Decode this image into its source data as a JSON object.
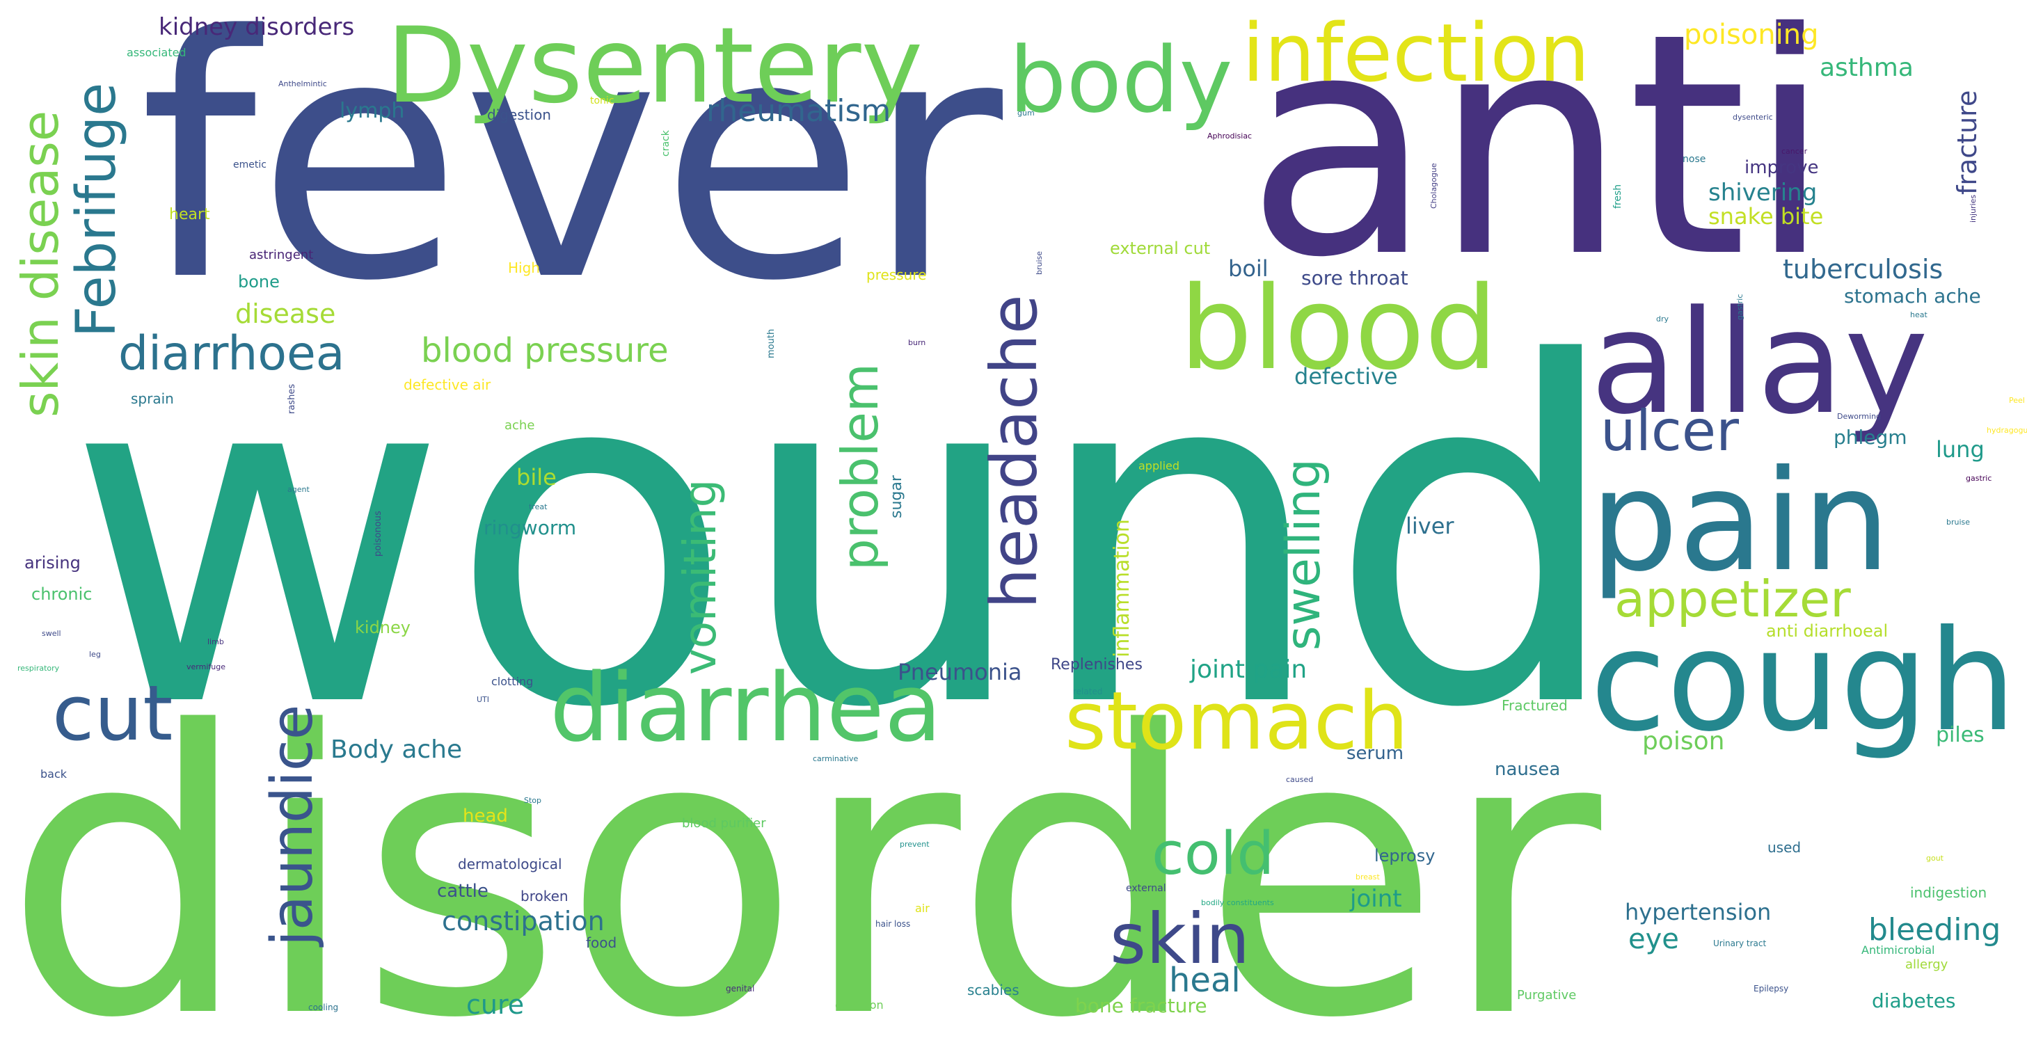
{
  "word_cloud": {
    "words": [
      {
        "id": "wound",
        "text": "wound",
        "color": "#22A384"
      },
      {
        "id": "disorder",
        "text": "disorder",
        "color": "#6ECE58"
      },
      {
        "id": "fever",
        "text": "fever",
        "color": "#3D4E8A"
      },
      {
        "id": "anti",
        "text": "anti",
        "color": "#46317E"
      },
      {
        "id": "dysentery",
        "text": "Dysentery",
        "color": "#6ECE58"
      },
      {
        "id": "infection",
        "text": "infection",
        "color": "#E3E418"
      },
      {
        "id": "body",
        "text": "body",
        "color": "#5EC962"
      },
      {
        "id": "blood",
        "text": "blood",
        "color": "#8FD744"
      },
      {
        "id": "allay",
        "text": "allay",
        "color": "#463480"
      },
      {
        "id": "pain",
        "text": "pain",
        "color": "#2A788E"
      },
      {
        "id": "cough",
        "text": "cough",
        "color": "#24878E"
      },
      {
        "id": "diarrhea",
        "text": "diarrhea",
        "color": "#52C569"
      },
      {
        "id": "stomach",
        "text": "stomach",
        "color": "#DFE318"
      },
      {
        "id": "cut",
        "text": "cut",
        "color": "#365C8D"
      },
      {
        "id": "skin",
        "text": "skin",
        "color": "#3E4989"
      },
      {
        "id": "cold",
        "text": "cold",
        "color": "#44BF70"
      },
      {
        "id": "ulcer",
        "text": "ulcer",
        "color": "#3B528B"
      },
      {
        "id": "appetizer",
        "text": "appetizer",
        "color": "#A5DB36"
      },
      {
        "id": "diarrhoea",
        "text": "diarrhoea",
        "color": "#2C728E"
      },
      {
        "id": "blood-pressure",
        "text": "blood pressure",
        "color": "#7AD151"
      },
      {
        "id": "rheumatism",
        "text": "rheumatism",
        "color": "#31668E"
      },
      {
        "id": "poisoning",
        "text": "poisoning",
        "color": "#FDE725"
      },
      {
        "id": "asthma",
        "text": "asthma",
        "color": "#35B779"
      },
      {
        "id": "kidney-disorders",
        "text": "kidney disorders",
        "color": "#482878"
      },
      {
        "id": "febrifuge",
        "text": "Febrifuge",
        "color": "#2A788E"
      },
      {
        "id": "skin-disease",
        "text": "skin disease",
        "color": "#7AD151"
      },
      {
        "id": "headache",
        "text": "headache",
        "color": "#414487"
      },
      {
        "id": "problem",
        "text": "problem",
        "color": "#4AC16D"
      },
      {
        "id": "vomiting",
        "text": "vomiting",
        "color": "#3BBB75"
      },
      {
        "id": "swelling",
        "text": "swelling",
        "color": "#2FB47C"
      },
      {
        "id": "jaundice",
        "text": "jaundice",
        "color": "#3A548C"
      },
      {
        "id": "inflammation",
        "text": "inflammation",
        "color": "#B8DE29"
      },
      {
        "id": "fracture",
        "text": "fracture",
        "color": "#3F4889"
      },
      {
        "id": "tuberculosis",
        "text": "tuberculosis",
        "color": "#31688E"
      },
      {
        "id": "shivering",
        "text": "shivering",
        "color": "#26828E"
      },
      {
        "id": "snake-bite",
        "text": "snake bite",
        "color": "#C2DF23"
      },
      {
        "id": "improve",
        "text": "improve",
        "color": "#453581"
      },
      {
        "id": "stomach-ache",
        "text": "stomach ache",
        "color": "#2C738E"
      },
      {
        "id": "lung",
        "text": "lung",
        "color": "#1F9A8A"
      },
      {
        "id": "phlegm",
        "text": "phlegm",
        "color": "#277F8E"
      },
      {
        "id": "defective",
        "text": "defective",
        "color": "#26828E"
      },
      {
        "id": "boil",
        "text": "boil",
        "color": "#33638D"
      },
      {
        "id": "sore-throat",
        "text": "sore throat",
        "color": "#3E4A89"
      },
      {
        "id": "external-cut",
        "text": "external cut",
        "color": "#A0DA39"
      },
      {
        "id": "liver",
        "text": "liver",
        "color": "#2D708E"
      },
      {
        "id": "joint-pain",
        "text": "joint pain",
        "color": "#20A386"
      },
      {
        "id": "pneumonia",
        "text": "Pneumonia",
        "color": "#3B528B"
      },
      {
        "id": "replenishes",
        "text": "Replenishes",
        "color": "#3F4788"
      },
      {
        "id": "body-ache",
        "text": "Body ache",
        "color": "#29798E"
      },
      {
        "id": "poison",
        "text": "poison",
        "color": "#6DCD59"
      },
      {
        "id": "piles",
        "text": "piles",
        "color": "#3ABA76"
      },
      {
        "id": "anti-diarrhoeal",
        "text": "anti diarrhoeal",
        "color": "#B5DE2B"
      },
      {
        "id": "serum",
        "text": "serum",
        "color": "#33628D"
      },
      {
        "id": "nausea",
        "text": "nausea",
        "color": "#2E6E8E"
      },
      {
        "id": "fractured",
        "text": "Fractured",
        "color": "#5CC863"
      },
      {
        "id": "leprosy",
        "text": "leprosy",
        "color": "#31668E"
      },
      {
        "id": "joint",
        "text": "joint",
        "color": "#1E9C89"
      },
      {
        "id": "hypertension",
        "text": "hypertension",
        "color": "#2D708E"
      },
      {
        "id": "eye",
        "text": "eye",
        "color": "#21918C"
      },
      {
        "id": "bleeding",
        "text": "bleeding",
        "color": "#238A8D"
      },
      {
        "id": "heal",
        "text": "heal",
        "color": "#2A788E"
      },
      {
        "id": "constipation",
        "text": "constipation",
        "color": "#2D718E"
      },
      {
        "id": "cure",
        "text": "cure",
        "color": "#1F988B"
      },
      {
        "id": "bone-fracture",
        "text": "bone fracture",
        "color": "#7FD34E"
      },
      {
        "id": "diabetes",
        "text": "diabetes",
        "color": "#1F9E89"
      },
      {
        "id": "lymph",
        "text": "lymph",
        "color": "#2A788E"
      },
      {
        "id": "digestion",
        "text": "digestion",
        "color": "#3B528B"
      },
      {
        "id": "disease",
        "text": "disease",
        "color": "#A5DB36"
      },
      {
        "id": "bone",
        "text": "bone",
        "color": "#1E9C89"
      },
      {
        "id": "astringent",
        "text": "astringent",
        "color": "#482475"
      },
      {
        "id": "heart",
        "text": "heart",
        "color": "#C2DF23"
      },
      {
        "id": "high",
        "text": "High",
        "color": "#FDE725"
      },
      {
        "id": "pressure",
        "text": "pressure",
        "color": "#DFE318"
      },
      {
        "id": "bile",
        "text": "bile",
        "color": "#ADDC30"
      },
      {
        "id": "ringworm",
        "text": "ringworm",
        "color": "#21908C"
      },
      {
        "id": "arising",
        "text": "arising",
        "color": "#46337E"
      },
      {
        "id": "chronic",
        "text": "chronic",
        "color": "#4AC16D"
      },
      {
        "id": "kidney",
        "text": "kidney",
        "color": "#8BD646"
      },
      {
        "id": "head",
        "text": "head",
        "color": "#E5E419"
      },
      {
        "id": "cattle",
        "text": "cattle",
        "color": "#3B528B"
      },
      {
        "id": "broken",
        "text": "broken",
        "color": "#404688"
      },
      {
        "id": "dermatological",
        "text": "dermatological",
        "color": "#3E4A89"
      },
      {
        "id": "food",
        "text": "food",
        "color": "#3B528B"
      },
      {
        "id": "scabies",
        "text": "scabies",
        "color": "#27808E"
      },
      {
        "id": "used",
        "text": "used",
        "color": "#2E6E8E"
      },
      {
        "id": "indigestion",
        "text": "indigestion",
        "color": "#4AC16D"
      },
      {
        "id": "allergy",
        "text": "allergy",
        "color": "#A0DA39"
      },
      {
        "id": "antimicrobial",
        "text": "Antimicrobial",
        "color": "#35B779"
      },
      {
        "id": "purgative",
        "text": "Purgative",
        "color": "#5EC962"
      },
      {
        "id": "blood-purifier",
        "text": "blood purifier",
        "color": "#5EC962"
      },
      {
        "id": "common",
        "text": "common",
        "color": "#6ECE58"
      },
      {
        "id": "cooling",
        "text": "cooling",
        "color": "#2C728E"
      },
      {
        "id": "genital",
        "text": "genital",
        "color": "#472D7B"
      },
      {
        "id": "epilepsy",
        "text": "Epilepsy",
        "color": "#3B528B"
      },
      {
        "id": "urinary-tract",
        "text": "Urinary tract",
        "color": "#2A788E"
      },
      {
        "id": "air",
        "text": "air",
        "color": "#DFE318"
      },
      {
        "id": "hair-loss",
        "text": "hair loss",
        "color": "#3B528B"
      },
      {
        "id": "external",
        "text": "external",
        "color": "#3E4A89"
      },
      {
        "id": "bodily-constituents",
        "text": "bodily constituents",
        "color": "#22A884"
      },
      {
        "id": "breast",
        "text": "breast",
        "color": "#FDE725"
      },
      {
        "id": "gout",
        "text": "gout",
        "color": "#C8E020"
      },
      {
        "id": "associated",
        "text": "associated",
        "color": "#35B779"
      },
      {
        "id": "anthelmintic",
        "text": "Anthelmintic",
        "color": "#3E4989"
      },
      {
        "id": "tonic",
        "text": "tonic",
        "color": "#D2E21B"
      },
      {
        "id": "crack",
        "text": "crack",
        "color": "#4AC16D"
      },
      {
        "id": "gum",
        "text": "gum",
        "color": "#2A788E"
      },
      {
        "id": "aphrodisiac",
        "text": "Aphrodisiac",
        "color": "#440154"
      },
      {
        "id": "dysenteric",
        "text": "dysenteric",
        "color": "#3E4A89"
      },
      {
        "id": "cancer",
        "text": "cancer",
        "color": "#48186A"
      },
      {
        "id": "nose",
        "text": "nose",
        "color": "#2A788E"
      },
      {
        "id": "itching",
        "text": "itching",
        "color": "#1F9E89"
      },
      {
        "id": "fresh",
        "text": "fresh",
        "color": "#433E85"
      },
      {
        "id": "cholagogue",
        "text": "Cholagogue",
        "color": "#453781"
      },
      {
        "id": "injuries",
        "text": "injuries",
        "color": "#3B528B"
      },
      {
        "id": "emetic",
        "text": "emetic",
        "color": "#2A788E"
      },
      {
        "id": "gastritis",
        "text": "gastritis",
        "color": "#482878"
      },
      {
        "id": "mouth",
        "text": "mouth",
        "color": "#3E4A89"
      },
      {
        "id": "burn",
        "text": "burn",
        "color": "#2A788E"
      },
      {
        "id": "rashes",
        "text": "rashes",
        "color": "#FDE725"
      },
      {
        "id": "sprain",
        "text": "sprain",
        "color": "#7AD151"
      },
      {
        "id": "defective-air",
        "text": "defective air",
        "color": "#2A788E"
      },
      {
        "id": "ache",
        "text": "ache",
        "color": "#C2DF23"
      },
      {
        "id": "sugar",
        "text": "sugar",
        "color": "#2A788E"
      },
      {
        "id": "applied",
        "text": "applied",
        "color": "#3E4A89"
      },
      {
        "id": "treat",
        "text": "treat",
        "color": "#2A788E"
      },
      {
        "id": "poisonous",
        "text": "poisonous",
        "color": "#3E4A89"
      },
      {
        "id": "agent",
        "text": "agent",
        "color": "#3E4A89"
      },
      {
        "id": "swell",
        "text": "swell",
        "color": "#35B779"
      },
      {
        "id": "leg",
        "text": "leg",
        "color": "#46337E"
      },
      {
        "id": "respiratory",
        "text": "respiratory",
        "color": "#482878"
      },
      {
        "id": "limb",
        "text": "limb",
        "color": "#3B528B"
      },
      {
        "id": "vermifuge",
        "text": "vermifuge",
        "color": "#3B528B"
      },
      {
        "id": "clotting",
        "text": "clotting",
        "color": "#21918C"
      },
      {
        "id": "uti",
        "text": "UTI",
        "color": "#3B528B"
      },
      {
        "id": "related",
        "text": "related",
        "color": "#2A788E"
      },
      {
        "id": "back",
        "text": "back",
        "color": "#2A788E"
      },
      {
        "id": "carminative",
        "text": "carminative",
        "color": "#3E4A89"
      },
      {
        "id": "stop",
        "text": "Stop",
        "color": "#21918C"
      },
      {
        "id": "cause",
        "text": "caused",
        "color": "#2A788E"
      },
      {
        "id": "prevent",
        "text": "prevent",
        "color": "#2A788E"
      },
      {
        "id": "dry",
        "text": "dry",
        "color": "#FDE725"
      },
      {
        "id": "heat",
        "text": "heat",
        "color": "#FDE725"
      },
      {
        "id": "peel",
        "text": "Peel",
        "color": "#3E4A89"
      },
      {
        "id": "hydragogue",
        "text": "hydragogue",
        "color": "#440154"
      },
      {
        "id": "deworming",
        "text": "Deworming",
        "color": "#2A788E"
      },
      {
        "id": "gastric",
        "text": "gastric",
        "color": "#2A788E"
      },
      {
        "id": "skin-small",
        "text": "bruise",
        "color": "#3E4A89"
      },
      {
        "id": "bruise",
        "text": "bruise",
        "color": "#3E4A89"
      }
    ]
  }
}
